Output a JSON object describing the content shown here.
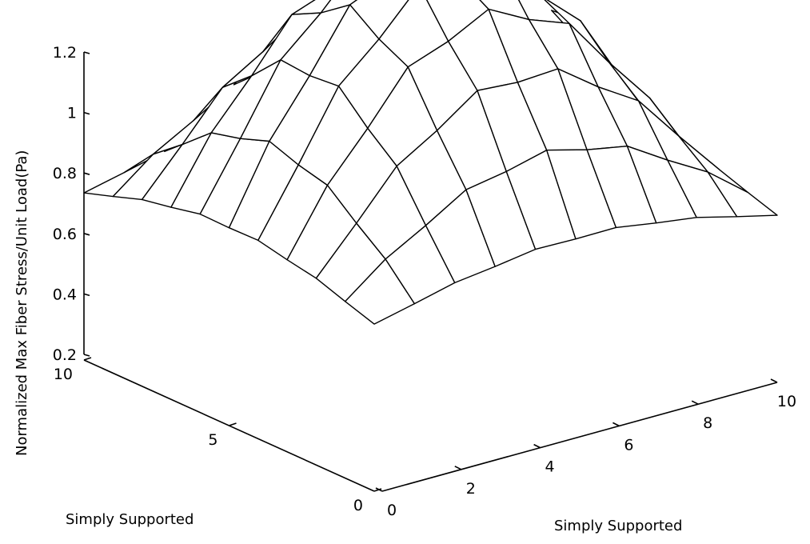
{
  "chart_data": {
    "type": "surface",
    "title": "",
    "zlabel": "Normalized Max Fiber Stress/Unit Load(Pa)",
    "xlabel": "Simply Supported",
    "ylabel": "Simply Supported",
    "x": [
      0,
      1,
      2,
      3,
      4,
      5,
      6,
      7,
      8,
      9,
      10
    ],
    "y": [
      0,
      1,
      2,
      3,
      4,
      5,
      6,
      7,
      8,
      9,
      10
    ],
    "zlim": [
      0.2,
      1.2
    ],
    "xlim": [
      0,
      10
    ],
    "ylim": [
      0,
      10
    ],
    "z_ticks": [
      "0.2",
      "0.4",
      "0.6",
      "0.8",
      "1",
      "1.2"
    ],
    "x_ticks": [
      "0",
      "2",
      "4",
      "6",
      "8",
      "10"
    ],
    "y_ticks": [
      "0",
      "5",
      "10"
    ],
    "peak_value": 1.15,
    "edge_value": 0.27,
    "grid": false
  }
}
